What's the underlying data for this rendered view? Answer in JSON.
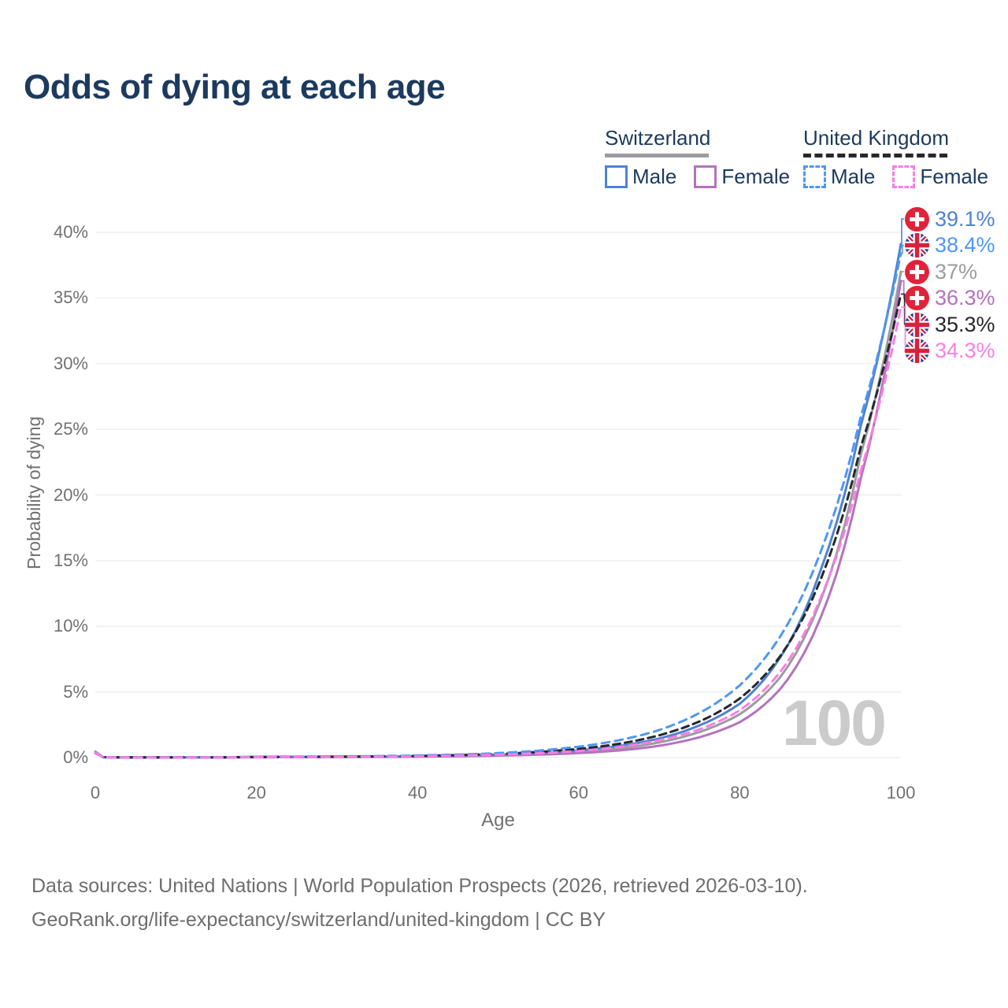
{
  "title": "Odds of dying at each age",
  "watermark": "100",
  "legend": {
    "groups": [
      {
        "country": "Switzerland",
        "line_style": "solid",
        "line_color": "#9C9CA0",
        "underline_width": 132,
        "items": [
          {
            "label": "Male",
            "color": "#4E82D4",
            "dashed": false
          },
          {
            "label": "Female",
            "color": "#B472BE",
            "dashed": false
          }
        ]
      },
      {
        "country": "United Kingdom",
        "line_style": "dashed",
        "line_color": "#27272C",
        "underline_width": 183,
        "items": [
          {
            "label": "Male",
            "color": "#4F97F6",
            "dashed": true
          },
          {
            "label": "Female",
            "color": "#FA7EE3",
            "dashed": true
          }
        ]
      }
    ]
  },
  "footer": {
    "line1": "Data sources: United Nations | World Population Prospects (2026, retrieved 2026-03-10).",
    "line2": "GeoRank.org/life-expectancy/switzerland/united-kingdom | CC BY"
  },
  "chart_data": {
    "type": "line",
    "title": "Odds of dying at each age",
    "xlabel": "Age",
    "ylabel": "Probability of dying",
    "xlim": [
      0,
      100
    ],
    "ylim_percent": [
      0,
      40
    ],
    "x_ticks": [
      0,
      20,
      40,
      60,
      80,
      100
    ],
    "y_tick_labels": [
      "0%",
      "5%",
      "10%",
      "15%",
      "20%",
      "25%",
      "30%",
      "35%",
      "40%"
    ],
    "grid": "horizontal",
    "legend_position": "top-right",
    "ages": [
      0,
      1,
      5,
      10,
      15,
      20,
      25,
      30,
      35,
      40,
      45,
      50,
      55,
      60,
      65,
      70,
      75,
      80,
      85,
      90,
      95,
      100
    ],
    "series": [
      {
        "name": "Switzerland Both sexes",
        "country": "Switzerland",
        "sex": "Both",
        "flag": "ch",
        "color": "#9C9CA0",
        "dashed": false,
        "end_label": "37%",
        "values": [
          0.36,
          0.025,
          0.008,
          0.008,
          0.015,
          0.04,
          0.045,
          0.05,
          0.06,
          0.08,
          0.12,
          0.18,
          0.28,
          0.44,
          0.7,
          1.15,
          1.95,
          3.3,
          6.1,
          11.9,
          23.0,
          37.0
        ]
      },
      {
        "name": "Switzerland Female",
        "country": "Switzerland",
        "sex": "Female",
        "flag": "ch",
        "color": "#B472BE",
        "dashed": false,
        "end_label": "36.3%",
        "values": [
          0.33,
          0.022,
          0.007,
          0.007,
          0.012,
          0.025,
          0.03,
          0.035,
          0.045,
          0.065,
          0.1,
          0.15,
          0.22,
          0.34,
          0.54,
          0.9,
          1.55,
          2.7,
          5.2,
          10.6,
          21.2,
          36.3
        ]
      },
      {
        "name": "Switzerland Male",
        "country": "Switzerland",
        "sex": "Male",
        "flag": "ch",
        "color": "#4E82D4",
        "dashed": false,
        "end_label": "39.1%",
        "values": [
          0.39,
          0.028,
          0.009,
          0.009,
          0.018,
          0.055,
          0.06,
          0.065,
          0.075,
          0.1,
          0.15,
          0.22,
          0.34,
          0.55,
          0.88,
          1.45,
          2.45,
          4.1,
          7.6,
          14.2,
          25.2,
          39.1
        ]
      },
      {
        "name": "United Kingdom Both sexes",
        "country": "United Kingdom",
        "sex": "Both",
        "flag": "uk",
        "color": "#27272C",
        "dashed": true,
        "end_label": "35.3%",
        "values": [
          0.42,
          0.03,
          0.009,
          0.009,
          0.017,
          0.045,
          0.06,
          0.07,
          0.09,
          0.13,
          0.19,
          0.28,
          0.43,
          0.66,
          1.05,
          1.7,
          2.75,
          4.5,
          7.7,
          13.5,
          23.6,
          35.3
        ]
      },
      {
        "name": "United Kingdom Male",
        "country": "United Kingdom",
        "sex": "Male",
        "flag": "uk",
        "color": "#4F97F6",
        "dashed": true,
        "end_label": "38.4%",
        "values": [
          0.45,
          0.032,
          0.01,
          0.01,
          0.02,
          0.06,
          0.08,
          0.09,
          0.115,
          0.16,
          0.23,
          0.34,
          0.53,
          0.83,
          1.32,
          2.1,
          3.4,
          5.5,
          9.2,
          15.6,
          25.9,
          38.4
        ]
      },
      {
        "name": "United Kingdom Female",
        "country": "United Kingdom",
        "sex": "Female",
        "flag": "uk",
        "color": "#FA7EE3",
        "dashed": true,
        "end_label": "34.3%",
        "values": [
          0.38,
          0.026,
          0.008,
          0.008,
          0.014,
          0.03,
          0.04,
          0.05,
          0.065,
          0.1,
          0.15,
          0.22,
          0.33,
          0.5,
          0.8,
          1.32,
          2.15,
          3.6,
          6.5,
          12.1,
          21.8,
          34.3
        ]
      }
    ]
  }
}
